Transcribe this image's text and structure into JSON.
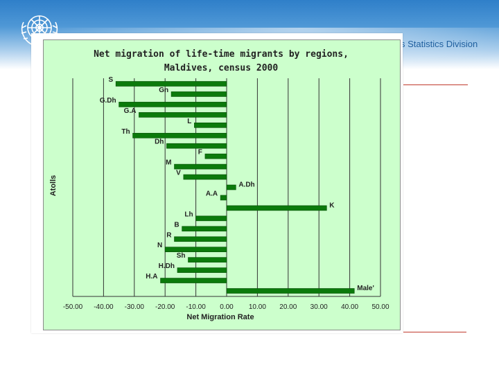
{
  "header": {
    "division_text": "s Statistics Division",
    "accent_color": "#c0392b"
  },
  "chart_data": {
    "type": "bar",
    "orientation": "horizontal",
    "title_lines": [
      "Net migration of life-time migrants by regions,",
      "Maldives, census 2000"
    ],
    "xlabel": "Net Migration Rate",
    "ylabel": "Atolls",
    "xlim": [
      -50,
      50
    ],
    "x_ticks": [
      "-50.00",
      "-40.00",
      "-30.00",
      "-20.00",
      "-10.00",
      "0.00",
      "10.00",
      "20.00",
      "30.00",
      "40.00",
      "50.00"
    ],
    "grid": true,
    "bar_color": "#0b7a0b",
    "background_color": "#ccffcc",
    "categories": [
      "S",
      "Gn",
      "G.Dh",
      "G.A",
      "L",
      "Th",
      "Dh",
      "F",
      "M",
      "V",
      "A.Dh",
      "A.A",
      "K",
      "Lh",
      "B",
      "R",
      "N",
      "Sh",
      "H.Dh",
      "H.A",
      "Male'"
    ],
    "values": [
      -36,
      -18,
      -35,
      -28.5,
      -10.5,
      -30.5,
      -19.5,
      -7,
      -17,
      -14,
      3,
      -2,
      32.5,
      -10,
      -14.5,
      -17,
      -20,
      -12.5,
      -16,
      -21.5,
      41.5
    ]
  }
}
